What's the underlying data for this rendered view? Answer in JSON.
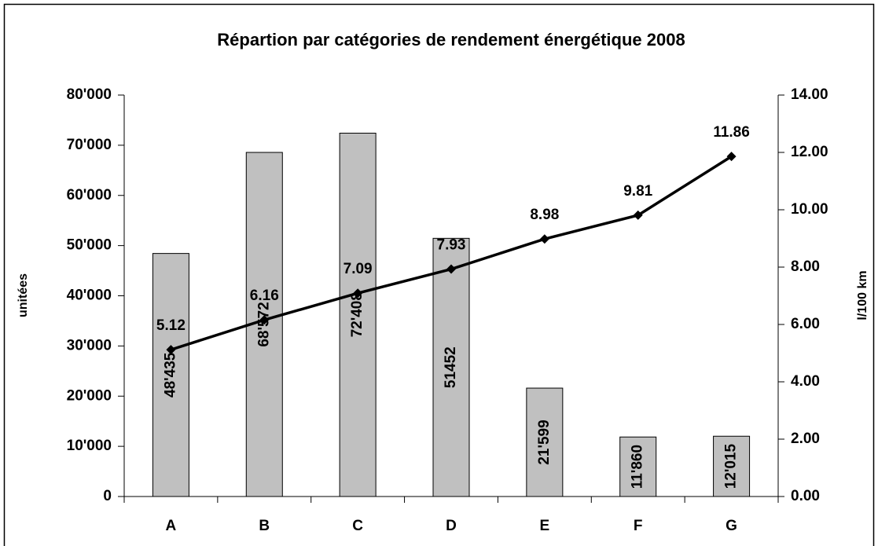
{
  "chart_data": {
    "type": "bar",
    "title": "Répartion par catégories de rendement énergétique 2008",
    "y_label": "unitées",
    "y2_label": "l/100 km",
    "categories": [
      "A",
      "B",
      "C",
      "D",
      "E",
      "F",
      "G"
    ],
    "series": [
      {
        "color": "#c0c0c0",
        "values": [
          48435,
          68572,
          72408,
          51452,
          21599,
          11860,
          12015
        ],
        "value_labels": [
          "48'435",
          "68'572",
          "72'408",
          "51452",
          "21'599",
          "11'860",
          "12'015"
        ]
      },
      {
        "type": "line",
        "axis": "y2",
        "color": "#000000",
        "values": [
          5.12,
          6.16,
          7.09,
          7.93,
          8.98,
          9.81,
          11.86
        ]
      }
    ],
    "ylim": [
      0,
      80000
    ],
    "yticks": [
      0,
      {
        "value": 10000,
        "label": "10'000"
      },
      {
        "value": 20000,
        "label": "20'000"
      },
      {
        "value": 30000,
        "label": "30'000"
      },
      {
        "value": 40000,
        "label": "40'000"
      },
      {
        "value": 50000,
        "label": "50'000"
      },
      {
        "value": 60000,
        "label": "60'000"
      },
      {
        "value": 70000,
        "label": "70'000"
      },
      {
        "value": 80000,
        "label": "80'000"
      }
    ],
    "y2lim": [
      0,
      14
    ],
    "y2ticks": [
      {
        "value": 0,
        "label": "0.00"
      },
      {
        "value": 2,
        "label": "2.00"
      },
      {
        "value": 4,
        "label": "4.00"
      },
      {
        "value": 6,
        "label": "6.00"
      },
      {
        "value": 8,
        "label": "8.00"
      },
      {
        "value": 10,
        "label": "10.00"
      },
      {
        "value": 12,
        "label": "12.00"
      },
      {
        "value": 14,
        "label": "14.00"
      }
    ],
    "grid": false
  }
}
